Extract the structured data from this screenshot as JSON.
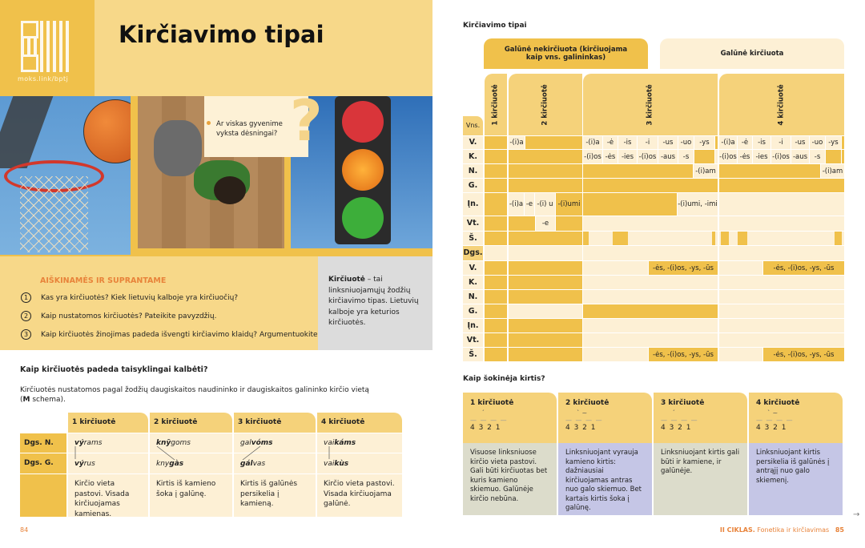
{
  "left": {
    "qr_link": "moks.link/bptj",
    "title": "Kirčiavimo tipai",
    "question": "Ar viskas gyvenime vyksta dėsningai?",
    "question_mark": "?",
    "discussion": {
      "heading": "AIŠKINAMĖS IR SUPRANTAME",
      "items": [
        {
          "num": "1",
          "text": "Kas yra kirčiuotės? Kiek lietuvių kalboje yra kirčiuočių?"
        },
        {
          "num": "2",
          "text": "Kaip nustatomos kirčiuotės? Pateikite pavyzdžių."
        },
        {
          "num": "3",
          "text": "Kaip kirčiuotės žinojimas padeda išvengti kirčiavimo klaidų? Argumentuokite."
        }
      ]
    },
    "definition": {
      "term": "Kirčiuotė",
      "text": " – tai linksniuojamųjų žodžių kirčiavimo tipas. Lietuvių kalboje yra keturios kirčiuotės."
    },
    "section_heading": "Kaip kirčiuotės padeda taisyklingai kalbėti?",
    "intro_text": "Kirčiuotės nustatomos pagal žodžių daugiskaitos naudininko ir daugiskaitos galininko kirčio vietą",
    "intro_schema_bold": "M",
    "intro_schema_rest": " schema).",
    "intro_paren": "(",
    "table": {
      "headers": [
        "1 kirčiuotė",
        "2 kirčiuotė",
        "3 kirčiuotė",
        "4 kirčiuotė"
      ],
      "row_labels": [
        "Dgs. N.",
        "Dgs. G."
      ],
      "dat_pl": [
        {
          "stress": "vý",
          "rest": "rams"
        },
        {
          "stress": "knỹ",
          "rest": "goms"
        },
        {
          "pre": "gal",
          "stress": "vóms"
        },
        {
          "pre": "vai",
          "stress": "káms"
        }
      ],
      "acc_pl": [
        {
          "stress": "vý",
          "rest": "rus"
        },
        {
          "pre": "kny",
          "stress": "gàs"
        },
        {
          "stress": "gál",
          "rest": "vas"
        },
        {
          "pre": "vai",
          "stress": "kùs"
        }
      ],
      "descriptions": [
        "Kirčio vieta pastovi. Visada kirčiuojamas kamienas.",
        "Kirtis iš kamieno šoka į galūnę.",
        "Kirtis iš galūnės persikelia į kamieną.",
        "Kirčio vieta pastovi. Visada kirčiuojama galūnė."
      ]
    },
    "page_number": "84"
  },
  "right": {
    "table_title": "Kirčiavimo tipai",
    "group_headers": [
      "Galūnė nekirčiuota (kirčiuojama kaip vns. galininkas)",
      "Galūnė kirčiuota"
    ],
    "column_headers": [
      "1 kirčiuotė",
      "2 kirčiuotė",
      "3 kirčiuotė",
      "4 kirčiuotė"
    ],
    "number_labels": {
      "singular": "Vns.",
      "plural": "Dgs."
    },
    "case_labels": [
      "V.",
      "K.",
      "N.",
      "G.",
      "Įn.",
      "Vt.",
      "Š."
    ],
    "suffixes": {
      "v_col2": "-(i)a",
      "v_col3": [
        "-(i)a",
        "-ė",
        "-is",
        "-i",
        "-us",
        "-uo",
        "-ys"
      ],
      "v_col4": [
        "-(i)a",
        "-ė",
        "-is",
        "-i",
        "-us",
        "-uo",
        "-ys"
      ],
      "k_col3": [
        "-(i)os",
        "-ės",
        "-ies",
        "-(i)os",
        "-aus",
        "-s"
      ],
      "k_col4": [
        "-(i)os",
        "-ės",
        "-ies",
        "-(i)os",
        "-aus",
        "-s"
      ],
      "n_col3": "-(i)am",
      "n_col4": "-(i)am",
      "in_col2": [
        "-(i)a",
        "-e",
        "-(i) u",
        "-(i)umi"
      ],
      "in_col3": "-(i)umi, -imi",
      "vt_col2": "-e",
      "pl_v_col3": "-ės, -(i)os, -ys, -ūs",
      "pl_v_col4": "-ės, -(i)os, -ys, -ūs",
      "pl_s_col3": "-ės, -(i)os, -ys, -ūs",
      "pl_s_col4": "-ės, -(i)os, -ys, -ūs"
    },
    "shift_heading": "Kaip šokinėja kirtis?",
    "cards": [
      {
        "title": "1 kirčiuotė",
        "accent": "´",
        "dashes": "— — — —",
        "digits": "4 3 2 1",
        "text": "Visuose linksniuose kirčio vieta pastovi. Gali būti kirčiuotas bet kuris kamieno skiemuo. Galūnėje kirčio nebūna.",
        "color": "#dcdccb"
      },
      {
        "title": "2 kirčiuotė",
        "accent": "` ~",
        "dashes": "— — — —",
        "digits": "4 3 2 1",
        "text": "Linksniuojant vyrauja kamieno kirtis: dažniausiai kirčiuojamas antras nuo galo skiemuo. Bet kartais kirtis šoka į galūnę.",
        "color": "#c5c6e6"
      },
      {
        "title": "3 kirčiuotė",
        "accent": "´",
        "dashes": "— — — —",
        "digits": "4 3 2 1",
        "text": "Linksniuojant kirtis gali būti ir kamiene, ir galūnėje.",
        "color": "#dcdccb"
      },
      {
        "title": "4 kirčiuotė",
        "accent": "` ~",
        "dashes": "— — — —",
        "digits": "4 3 2 1",
        "text": "Linksniuojant kirtis persikelia iš galūnės į antrąjį nuo galo skiemenį.",
        "color": "#c5c6e6"
      }
    ],
    "footer": {
      "chapter": "II CIKLAS.",
      "topic": "Fonetika ir kirčiavimas",
      "page_number": "85"
    }
  },
  "colors": {
    "dark_yellow": "#f0c14b",
    "light_cream": "#fdf0d5",
    "mid_yellow": "#f5d27a",
    "accent_orange": "#e8833a"
  }
}
